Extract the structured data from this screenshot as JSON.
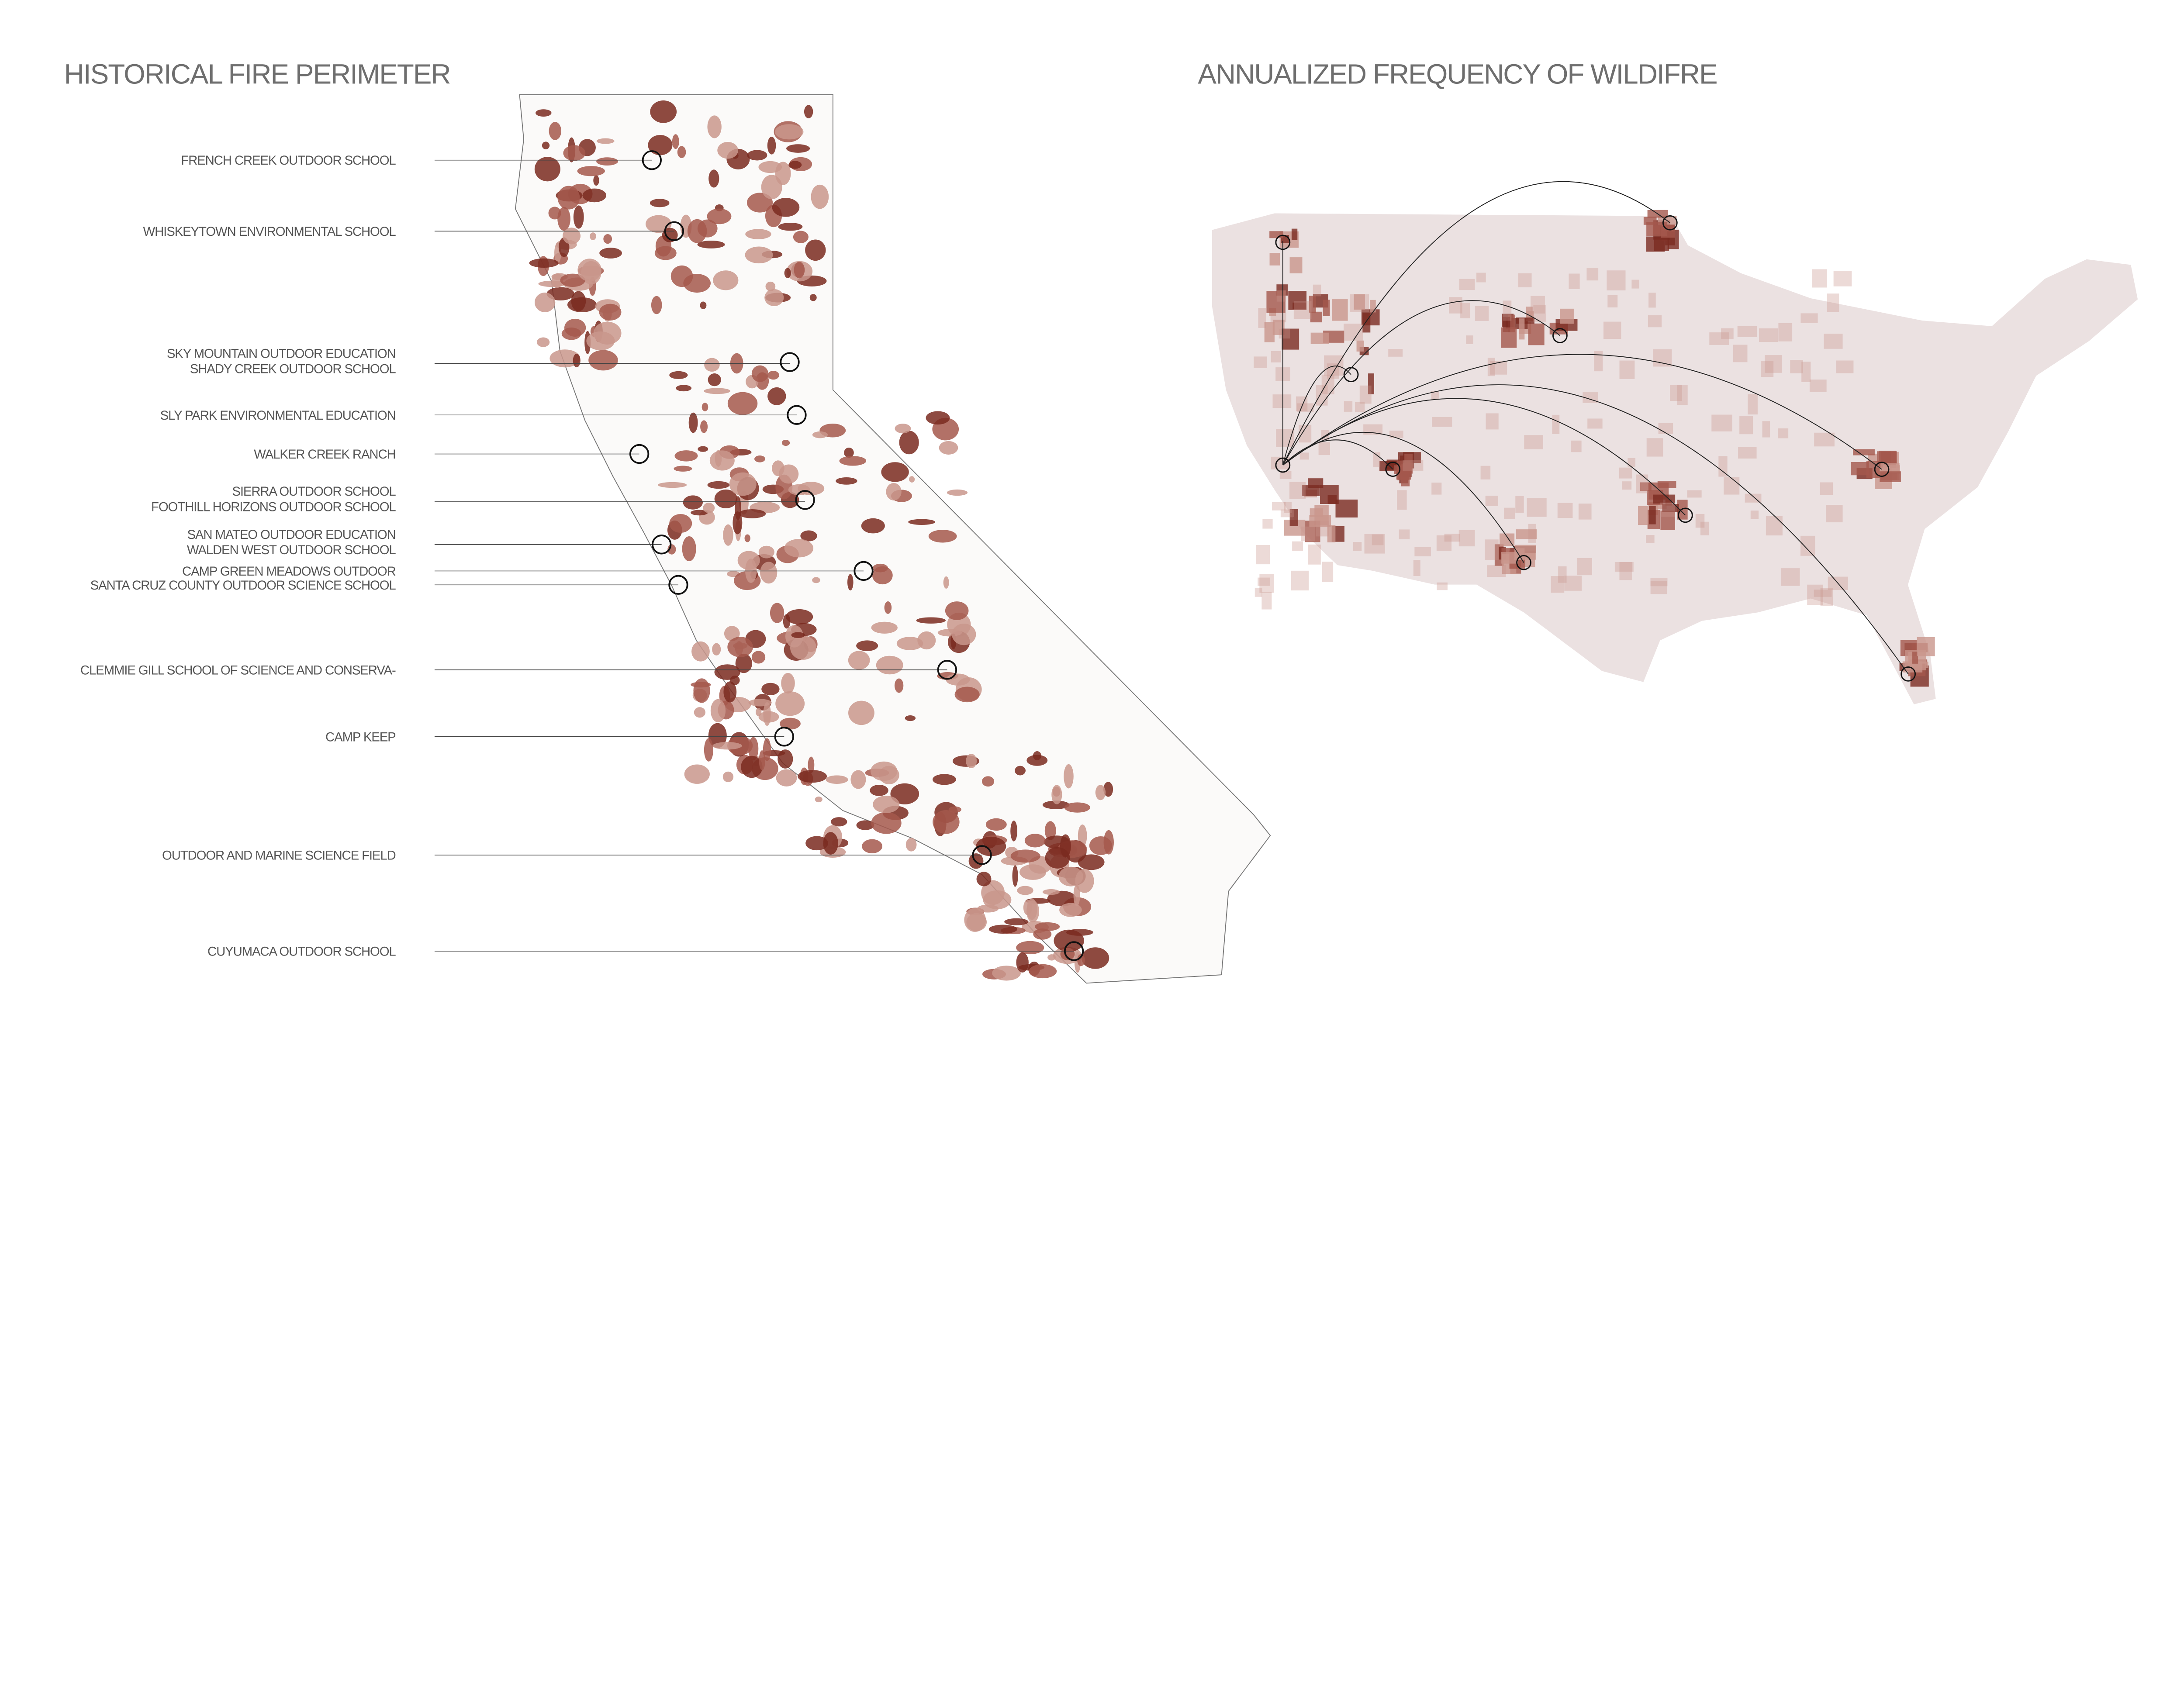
{
  "left_panel": {
    "title": "HISTORICAL FIRE PERIMETER",
    "sites": [
      {
        "lines": [
          "FRENCH CREEK OUTDOOR SCHOOL"
        ]
      },
      {
        "lines": [
          "WHISKEYTOWN ENVIRONMENTAL SCHOOL"
        ]
      },
      {
        "lines": [
          "SKY MOUNTAIN OUTDOOR EDUCATION",
          "SHADY CREEK OUTDOOR SCHOOL"
        ]
      },
      {
        "lines": [
          "SLY PARK ENVIRONMENTAL EDUCATION"
        ]
      },
      {
        "lines": [
          "WALKER CREEK RANCH"
        ]
      },
      {
        "lines": [
          "SIERRA OUTDOOR SCHOOL",
          "FOOTHILL HORIZONS OUTDOOR SCHOOL"
        ]
      },
      {
        "lines": [
          "SAN MATEO OUTDOOR EDUCATION",
          "WALDEN WEST OUTDOOR SCHOOL"
        ]
      },
      {
        "lines": [
          "CAMP GREEN MEADOWS OUTDOOR"
        ]
      },
      {
        "lines": [
          "SANTA CRUZ COUNTY OUTDOOR SCIENCE SCHOOL"
        ]
      },
      {
        "lines": [
          "CLEMMIE GILL SCHOOL OF SCIENCE AND CONSERVA-"
        ]
      },
      {
        "lines": [
          "CAMP KEEP"
        ]
      },
      {
        "lines": [
          "OUTDOOR AND MARINE SCIENCE FIELD"
        ]
      },
      {
        "lines": [
          "CUYUMACA OUTDOOR SCHOOL"
        ]
      }
    ]
  },
  "right_panel": {
    "title": "ANNUALIZED FREQUENCY OF WILDIFRE"
  },
  "colors": {
    "fire_dark": "#7a2a20",
    "fire_mid": "#a4584c",
    "fire_light": "#c9968c",
    "us_base": "#ebe1e1",
    "text": "#555555"
  }
}
